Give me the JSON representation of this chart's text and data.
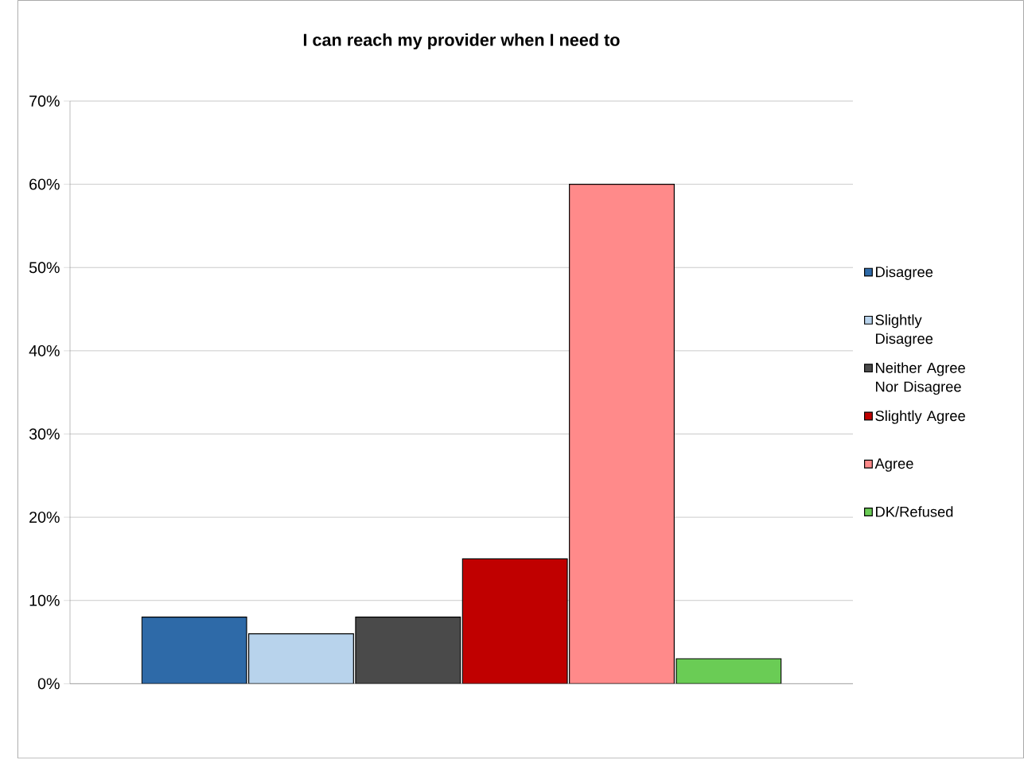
{
  "chart_data": {
    "type": "bar",
    "title": "I can reach my provider when I need to",
    "categories": [
      null
    ],
    "series": [
      {
        "name": "Disagree",
        "color": "#2e6aa8",
        "values": [
          8
        ]
      },
      {
        "name": "Slightly Disagree",
        "color": "#b8d3ec",
        "values": [
          6
        ]
      },
      {
        "name": "Neither Agree Nor Disagree",
        "color": "#4a4a4a",
        "values": [
          8
        ]
      },
      {
        "name": "Slightly Agree",
        "color": "#c00000",
        "values": [
          15
        ]
      },
      {
        "name": "Agree",
        "color": "#ff8a8a",
        "values": [
          60
        ]
      },
      {
        "name": "DK/Refused",
        "color": "#6acc55",
        "values": [
          3
        ]
      }
    ],
    "ylim": [
      0,
      70
    ],
    "yticks": [
      {
        "value": 0,
        "label": "0%"
      },
      {
        "value": 10,
        "label": "10%"
      },
      {
        "value": 20,
        "label": "20%"
      },
      {
        "value": 30,
        "label": "30%"
      },
      {
        "value": 40,
        "label": "40%"
      },
      {
        "value": 50,
        "label": "50%"
      },
      {
        "value": 60,
        "label": "60%"
      },
      {
        "value": 70,
        "label": "70%"
      }
    ],
    "grid": "y",
    "legend": "right"
  }
}
